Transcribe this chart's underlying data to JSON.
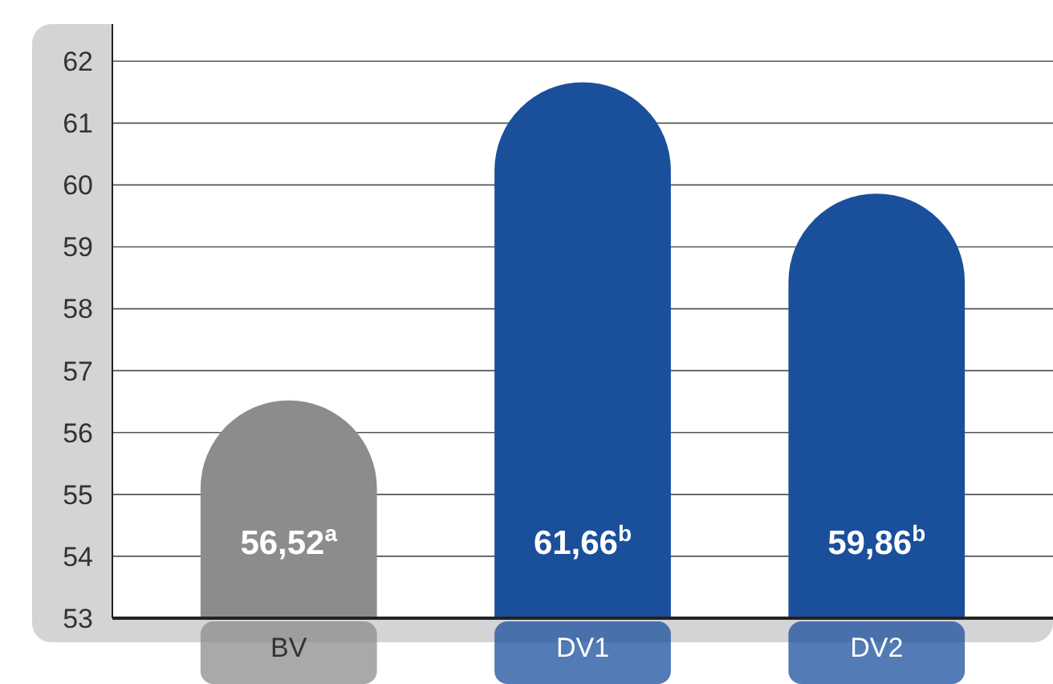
{
  "chart_data": {
    "type": "bar",
    "categories": [
      "BV",
      "DV1",
      "DV2"
    ],
    "values": [
      56.52,
      61.66,
      59.86
    ],
    "colors": [
      "#8c8c8c",
      "#1a4f9c",
      "#1a4f9c"
    ],
    "value_labels": [
      "56,52$^{a}$",
      "61,66$^{b}$",
      "59,86$^{b}$"
    ],
    "ylim": [
      53,
      62.6
    ],
    "yticks": [
      53,
      54,
      55,
      56,
      57,
      58,
      59,
      60,
      61,
      62
    ],
    "grid": "y"
  }
}
